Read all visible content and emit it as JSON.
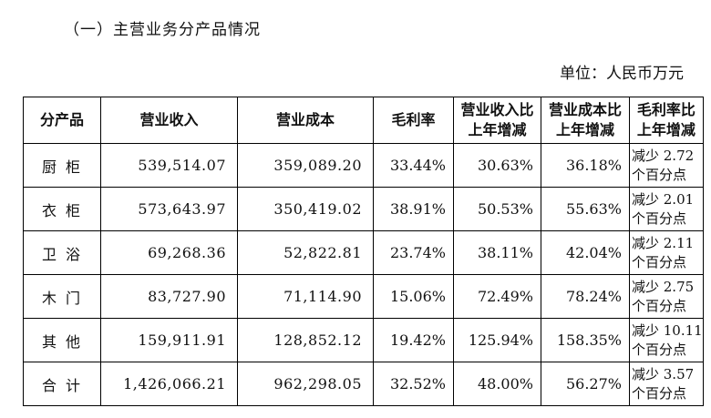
{
  "section_title": "（一）主营业务分产品情况",
  "unit_label": "单位：人民币万元",
  "table": {
    "headers": [
      [
        "分产品"
      ],
      [
        "营业收入"
      ],
      [
        "营业成本"
      ],
      [
        "毛利率"
      ],
      [
        "营业收入比",
        "上年增减"
      ],
      [
        "营业成本比",
        "上年增减"
      ],
      [
        "毛利率比",
        "上年增减"
      ]
    ],
    "rows": [
      {
        "product": "厨柜",
        "revenue": "539,514.07",
        "cost": "359,089.20",
        "margin": "33.44%",
        "revenue_change": "30.63%",
        "cost_change": "36.18%",
        "margin_change": [
          "减少 2.72",
          "个百分点"
        ]
      },
      {
        "product": "衣柜",
        "revenue": "573,643.97",
        "cost": "350,419.02",
        "margin": "38.91%",
        "revenue_change": "50.53%",
        "cost_change": "55.63%",
        "margin_change": [
          "减少 2.01",
          "个百分点"
        ]
      },
      {
        "product": "卫浴",
        "revenue": "69,268.36",
        "cost": "52,822.81",
        "margin": "23.74%",
        "revenue_change": "38.11%",
        "cost_change": "42.04%",
        "margin_change": [
          "减少 2.11",
          "个百分点"
        ]
      },
      {
        "product": "木门",
        "revenue": "83,727.90",
        "cost": "71,114.90",
        "margin": "15.06%",
        "revenue_change": "72.49%",
        "cost_change": "78.24%",
        "margin_change": [
          "减少 2.75",
          "个百分点"
        ]
      },
      {
        "product": "其他",
        "revenue": "159,911.91",
        "cost": "128,852.12",
        "margin": "19.42%",
        "revenue_change": "125.94%",
        "cost_change": "158.35%",
        "margin_change": [
          "减少 10.11",
          "个百分点"
        ]
      },
      {
        "product": "合计",
        "revenue": "1,426,066.21",
        "cost": "962,298.05",
        "margin": "32.52%",
        "revenue_change": "48.00%",
        "cost_change": "56.27%",
        "margin_change": [
          "减少 3.57",
          "个百分点"
        ]
      }
    ]
  }
}
